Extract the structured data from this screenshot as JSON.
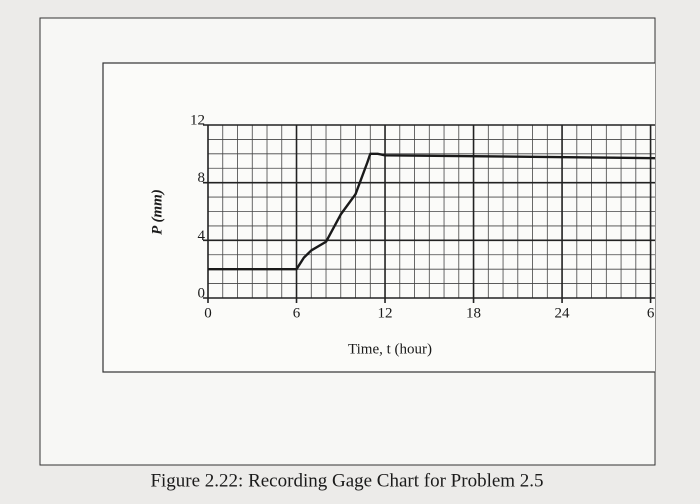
{
  "chart_data": {
    "type": "line",
    "xlabel": "Time, t (hour)",
    "ylabel": "P (mm)",
    "caption": "Figure 2.22: Recording Gage Chart for Problem 2.5",
    "x": [
      0,
      6,
      6.5,
      7,
      8,
      9,
      10,
      10.8,
      11,
      11.5,
      12,
      30.3
    ],
    "series": [
      {
        "color": "#1a1a1a",
        "values": [
          2,
          2,
          2.8,
          3.3,
          3.9,
          5.8,
          7.2,
          9.4,
          10,
          10,
          9.9,
          9.7
        ]
      }
    ],
    "xlim": [
      0,
      30.3
    ],
    "ylim": [
      0,
      12
    ],
    "xticks": [
      0,
      6,
      12,
      18,
      24,
      {
        "value": 30,
        "label": "6"
      }
    ],
    "yticks": [
      0,
      4,
      8,
      12
    ],
    "grid": true,
    "minor_step": 1
  }
}
